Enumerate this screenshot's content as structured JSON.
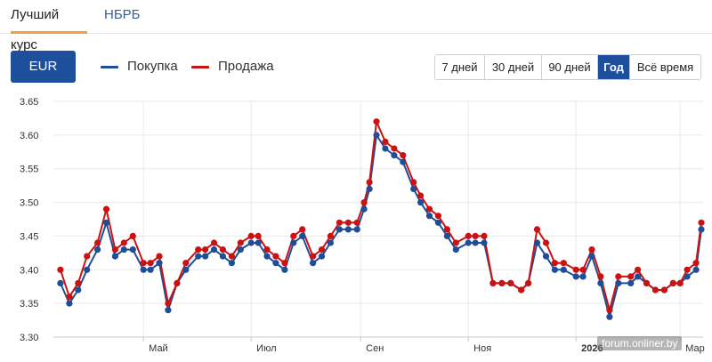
{
  "tabs": [
    {
      "label": "Лучший курс",
      "active": true
    },
    {
      "label": "НБРБ",
      "active": false
    }
  ],
  "currency_button": "EUR",
  "legend": [
    {
      "label": "Покупка",
      "color": "#1f4e98"
    },
    {
      "label": "Продажа",
      "color": "#cc1111"
    }
  ],
  "periods": [
    {
      "label": "7 дней",
      "active": false
    },
    {
      "label": "30 дней",
      "active": false
    },
    {
      "label": "90 дней",
      "active": false
    },
    {
      "label": "Год",
      "active": true
    },
    {
      "label": "Всё время",
      "active": false
    }
  ],
  "watermark": "forum.onliner.by",
  "chart_data": {
    "type": "line",
    "title": "",
    "xlabel": "",
    "ylabel": "",
    "ylim": [
      3.3,
      3.65
    ],
    "y_ticks": [
      "3.30",
      "3.35",
      "3.40",
      "3.45",
      "3.50",
      "3.55",
      "3.60",
      "3.65"
    ],
    "x_ticks": [
      "Май",
      "Июл",
      "Сен",
      "Ноя",
      "2026",
      "Мар"
    ],
    "grid": true,
    "legend_position": "top",
    "x": [
      "2025-03-15",
      "2025-03-20",
      "2025-03-25",
      "2025-03-30",
      "2025-04-05",
      "2025-04-10",
      "2025-04-15",
      "2025-04-20",
      "2025-04-25",
      "2025-05-01",
      "2025-05-05",
      "2025-05-10",
      "2025-05-15",
      "2025-05-20",
      "2025-05-25",
      "2025-06-01",
      "2025-06-05",
      "2025-06-10",
      "2025-06-15",
      "2025-06-20",
      "2025-06-25",
      "2025-07-01",
      "2025-07-05",
      "2025-07-10",
      "2025-07-15",
      "2025-07-20",
      "2025-07-25",
      "2025-07-30",
      "2025-08-05",
      "2025-08-10",
      "2025-08-15",
      "2025-08-20",
      "2025-08-25",
      "2025-08-30",
      "2025-09-03",
      "2025-09-06",
      "2025-09-10",
      "2025-09-15",
      "2025-09-20",
      "2025-09-25",
      "2025-10-01",
      "2025-10-05",
      "2025-10-10",
      "2025-10-15",
      "2025-10-20",
      "2025-10-25",
      "2025-11-01",
      "2025-11-05",
      "2025-11-10",
      "2025-11-15",
      "2025-11-20",
      "2025-11-25",
      "2025-12-01",
      "2025-12-05",
      "2025-12-10",
      "2025-12-15",
      "2025-12-20",
      "2025-12-25",
      "2026-01-01",
      "2026-01-05",
      "2026-01-10",
      "2026-01-15",
      "2026-01-20",
      "2026-01-25",
      "2026-02-01",
      "2026-02-05",
      "2026-02-10",
      "2026-02-15",
      "2026-02-20",
      "2026-02-25",
      "2026-03-01",
      "2026-03-05",
      "2026-03-10",
      "2026-03-13"
    ],
    "series": [
      {
        "name": "Покупка",
        "color": "#1f4e98",
        "values": [
          3.38,
          3.35,
          3.37,
          3.4,
          3.43,
          3.47,
          3.42,
          3.43,
          3.43,
          3.4,
          3.4,
          3.41,
          3.34,
          3.38,
          3.4,
          3.42,
          3.42,
          3.43,
          3.42,
          3.41,
          3.43,
          3.44,
          3.44,
          3.42,
          3.41,
          3.4,
          3.44,
          3.45,
          3.41,
          3.42,
          3.44,
          3.46,
          3.46,
          3.46,
          3.49,
          3.52,
          3.6,
          3.58,
          3.57,
          3.56,
          3.52,
          3.5,
          3.48,
          3.47,
          3.45,
          3.43,
          3.44,
          3.44,
          3.44,
          3.38,
          3.38,
          3.38,
          3.37,
          3.38,
          3.44,
          3.42,
          3.4,
          3.4,
          3.39,
          3.39,
          3.42,
          3.38,
          3.33,
          3.38,
          3.38,
          3.39,
          3.38,
          3.37,
          3.37,
          3.38,
          3.38,
          3.39,
          3.4,
          3.46
        ]
      },
      {
        "name": "Продажа",
        "color": "#cc1111",
        "values": [
          3.4,
          3.36,
          3.38,
          3.42,
          3.44,
          3.49,
          3.43,
          3.44,
          3.45,
          3.41,
          3.41,
          3.42,
          3.35,
          3.38,
          3.41,
          3.43,
          3.43,
          3.44,
          3.43,
          3.42,
          3.44,
          3.45,
          3.45,
          3.43,
          3.42,
          3.41,
          3.45,
          3.46,
          3.42,
          3.43,
          3.45,
          3.47,
          3.47,
          3.47,
          3.5,
          3.53,
          3.62,
          3.59,
          3.58,
          3.57,
          3.53,
          3.51,
          3.49,
          3.48,
          3.46,
          3.44,
          3.45,
          3.45,
          3.45,
          3.38,
          3.38,
          3.38,
          3.37,
          3.38,
          3.46,
          3.44,
          3.41,
          3.41,
          3.4,
          3.4,
          3.43,
          3.39,
          3.34,
          3.39,
          3.39,
          3.4,
          3.38,
          3.37,
          3.37,
          3.38,
          3.38,
          3.4,
          3.41,
          3.47
        ]
      }
    ]
  }
}
